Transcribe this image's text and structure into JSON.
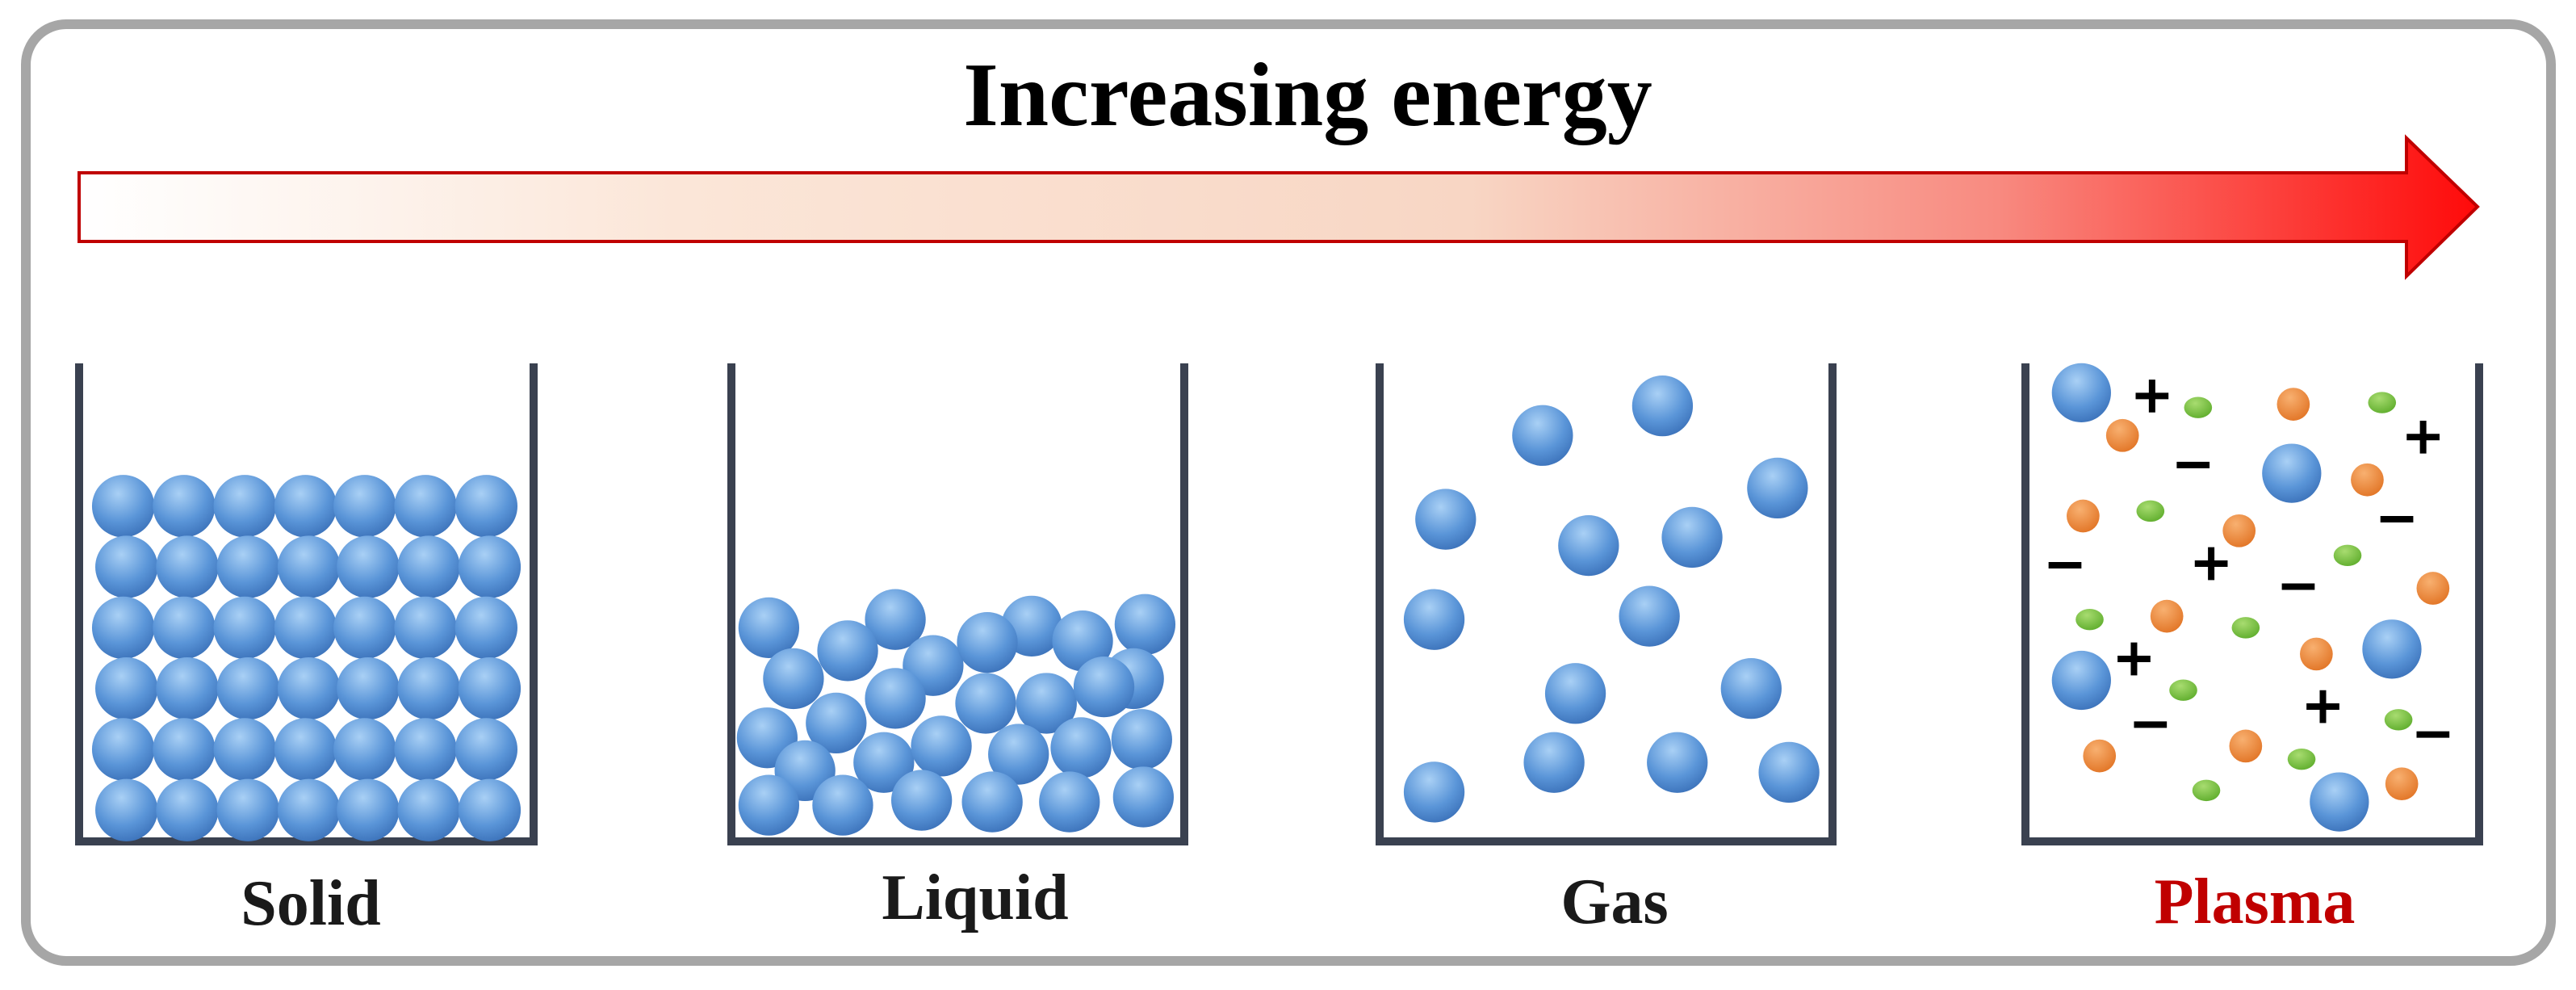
{
  "title": "Increasing energy",
  "states": [
    {
      "label": "Solid"
    },
    {
      "label": "Liquid"
    },
    {
      "label": "Gas"
    },
    {
      "label": "Plasma"
    }
  ]
}
